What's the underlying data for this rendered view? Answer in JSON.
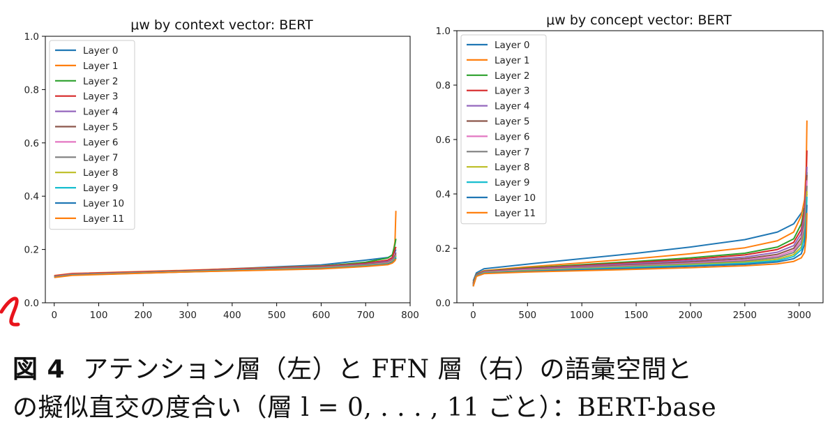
{
  "chart_data": [
    {
      "type": "line",
      "title": "μw by context vector: BERT",
      "xlabel": "",
      "ylabel": "",
      "xlim": [
        -20,
        800
      ],
      "ylim": [
        0.0,
        1.0
      ],
      "xticks": [
        0,
        100,
        200,
        300,
        400,
        500,
        600,
        700,
        800
      ],
      "yticks": [
        0.0,
        0.2,
        0.4,
        0.6,
        0.8,
        1.0
      ],
      "legend_position": "upper-left",
      "series": [
        {
          "name": "Layer 0",
          "color": "#1f77b4",
          "x": [
            0,
            40,
            300,
            600,
            700,
            750,
            760,
            766,
            768
          ],
          "y": [
            0.1,
            0.108,
            0.121,
            0.142,
            0.16,
            0.17,
            0.178,
            0.192,
            0.2
          ]
        },
        {
          "name": "Layer 1",
          "color": "#ff7f0e",
          "x": [
            0,
            40,
            300,
            600,
            700,
            750,
            760,
            766,
            768
          ],
          "y": [
            0.102,
            0.11,
            0.122,
            0.138,
            0.15,
            0.158,
            0.165,
            0.23,
            0.345
          ]
        },
        {
          "name": "Layer 2",
          "color": "#2ca02c",
          "x": [
            0,
            40,
            300,
            600,
            700,
            750,
            760,
            766,
            768
          ],
          "y": [
            0.1,
            0.108,
            0.12,
            0.137,
            0.152,
            0.168,
            0.18,
            0.22,
            0.24
          ]
        },
        {
          "name": "Layer 3",
          "color": "#d62728",
          "x": [
            0,
            40,
            300,
            600,
            700,
            750,
            760,
            766,
            768
          ],
          "y": [
            0.101,
            0.109,
            0.121,
            0.136,
            0.148,
            0.16,
            0.17,
            0.2,
            0.21
          ]
        },
        {
          "name": "Layer 4",
          "color": "#9467bd",
          "x": [
            0,
            40,
            300,
            600,
            700,
            750,
            760,
            766,
            768
          ],
          "y": [
            0.099,
            0.107,
            0.119,
            0.134,
            0.145,
            0.155,
            0.163,
            0.18,
            0.19
          ]
        },
        {
          "name": "Layer 5",
          "color": "#8c564b",
          "x": [
            0,
            40,
            300,
            600,
            700,
            750,
            760,
            766,
            768
          ],
          "y": [
            0.098,
            0.106,
            0.119,
            0.133,
            0.143,
            0.152,
            0.16,
            0.175,
            0.185
          ]
        },
        {
          "name": "Layer 6",
          "color": "#e377c2",
          "x": [
            0,
            40,
            300,
            600,
            700,
            750,
            760,
            766,
            768
          ],
          "y": [
            0.098,
            0.106,
            0.118,
            0.132,
            0.141,
            0.15,
            0.158,
            0.17,
            0.18
          ]
        },
        {
          "name": "Layer 7",
          "color": "#7f7f7f",
          "x": [
            0,
            40,
            300,
            600,
            700,
            750,
            760,
            766,
            768
          ],
          "y": [
            0.097,
            0.105,
            0.118,
            0.131,
            0.14,
            0.148,
            0.156,
            0.168,
            0.178
          ]
        },
        {
          "name": "Layer 8",
          "color": "#bcbd22",
          "x": [
            0,
            40,
            300,
            600,
            700,
            750,
            760,
            766,
            768
          ],
          "y": [
            0.097,
            0.105,
            0.117,
            0.13,
            0.139,
            0.147,
            0.154,
            0.165,
            0.175
          ]
        },
        {
          "name": "Layer 9",
          "color": "#17becf",
          "x": [
            0,
            40,
            300,
            600,
            700,
            750,
            760,
            766,
            768
          ],
          "y": [
            0.096,
            0.104,
            0.117,
            0.129,
            0.138,
            0.146,
            0.152,
            0.162,
            0.172
          ]
        },
        {
          "name": "Layer 10",
          "color": "#1f77b4",
          "x": [
            0,
            40,
            300,
            600,
            700,
            750,
            760,
            766,
            768
          ],
          "y": [
            0.096,
            0.104,
            0.116,
            0.128,
            0.137,
            0.145,
            0.151,
            0.16,
            0.168
          ]
        },
        {
          "name": "Layer 11",
          "color": "#ff7f0e",
          "x": [
            0,
            40,
            300,
            600,
            700,
            750,
            760,
            766,
            768
          ],
          "y": [
            0.095,
            0.103,
            0.116,
            0.127,
            0.136,
            0.143,
            0.149,
            0.158,
            0.165
          ]
        }
      ]
    },
    {
      "type": "line",
      "title": "μw by concept vector: BERT",
      "xlabel": "",
      "ylabel": "",
      "xlim": [
        -150,
        3220
      ],
      "ylim": [
        0.0,
        1.0
      ],
      "xticks": [
        0,
        500,
        1000,
        1500,
        2000,
        2500,
        3000
      ],
      "yticks": [
        0.0,
        0.2,
        0.4,
        0.6,
        0.8,
        1.0
      ],
      "legend_position": "upper-left",
      "series": [
        {
          "name": "Layer 0",
          "color": "#1f77b4",
          "x": [
            0,
            30,
            100,
            500,
            1000,
            1500,
            2000,
            2500,
            2800,
            2950,
            3020,
            3050,
            3065,
            3072
          ],
          "y": [
            0.08,
            0.11,
            0.125,
            0.142,
            0.162,
            0.182,
            0.205,
            0.232,
            0.26,
            0.29,
            0.33,
            0.35,
            0.38,
            0.4
          ]
        },
        {
          "name": "Layer 1",
          "color": "#ff7f0e",
          "x": [
            0,
            30,
            100,
            500,
            1000,
            1500,
            2000,
            2500,
            2800,
            2950,
            3020,
            3050,
            3065,
            3072
          ],
          "y": [
            0.075,
            0.105,
            0.118,
            0.132,
            0.147,
            0.162,
            0.18,
            0.202,
            0.228,
            0.26,
            0.32,
            0.38,
            0.5,
            0.67
          ]
        },
        {
          "name": "Layer 2",
          "color": "#2ca02c",
          "x": [
            0,
            30,
            100,
            500,
            1000,
            1500,
            2000,
            2500,
            2800,
            2950,
            3020,
            3050,
            3065,
            3072
          ],
          "y": [
            0.072,
            0.104,
            0.116,
            0.128,
            0.14,
            0.152,
            0.165,
            0.182,
            0.205,
            0.235,
            0.29,
            0.35,
            0.43,
            0.48
          ]
        },
        {
          "name": "Layer 3",
          "color": "#d62728",
          "x": [
            0,
            30,
            100,
            500,
            1000,
            1500,
            2000,
            2500,
            2800,
            2950,
            3020,
            3050,
            3065,
            3072
          ],
          "y": [
            0.07,
            0.103,
            0.115,
            0.126,
            0.137,
            0.148,
            0.16,
            0.176,
            0.196,
            0.222,
            0.27,
            0.34,
            0.46,
            0.56
          ]
        },
        {
          "name": "Layer 4",
          "color": "#9467bd",
          "x": [
            0,
            30,
            100,
            500,
            1000,
            1500,
            2000,
            2500,
            2800,
            2950,
            3020,
            3050,
            3065,
            3072
          ],
          "y": [
            0.068,
            0.102,
            0.114,
            0.124,
            0.134,
            0.144,
            0.155,
            0.168,
            0.186,
            0.21,
            0.255,
            0.32,
            0.42,
            0.5
          ]
        },
        {
          "name": "Layer 5",
          "color": "#8c564b",
          "x": [
            0,
            30,
            100,
            500,
            1000,
            1500,
            2000,
            2500,
            2800,
            2950,
            3020,
            3050,
            3065,
            3072
          ],
          "y": [
            0.066,
            0.101,
            0.113,
            0.122,
            0.131,
            0.14,
            0.15,
            0.162,
            0.178,
            0.2,
            0.24,
            0.3,
            0.4,
            0.47
          ]
        },
        {
          "name": "Layer 6",
          "color": "#e377c2",
          "x": [
            0,
            30,
            100,
            500,
            1000,
            1500,
            2000,
            2500,
            2800,
            2950,
            3020,
            3050,
            3065,
            3072
          ],
          "y": [
            0.064,
            0.1,
            0.112,
            0.121,
            0.129,
            0.137,
            0.146,
            0.157,
            0.171,
            0.192,
            0.228,
            0.285,
            0.38,
            0.45
          ]
        },
        {
          "name": "Layer 7",
          "color": "#7f7f7f",
          "x": [
            0,
            30,
            100,
            500,
            1000,
            1500,
            2000,
            2500,
            2800,
            2950,
            3020,
            3050,
            3065,
            3072
          ],
          "y": [
            0.063,
            0.1,
            0.111,
            0.119,
            0.127,
            0.135,
            0.143,
            0.153,
            0.166,
            0.185,
            0.218,
            0.27,
            0.36,
            0.43
          ]
        },
        {
          "name": "Layer 8",
          "color": "#bcbd22",
          "x": [
            0,
            30,
            100,
            500,
            1000,
            1500,
            2000,
            2500,
            2800,
            2950,
            3020,
            3050,
            3065,
            3072
          ],
          "y": [
            0.062,
            0.099,
            0.11,
            0.118,
            0.125,
            0.132,
            0.14,
            0.149,
            0.16,
            0.177,
            0.205,
            0.255,
            0.34,
            0.41
          ]
        },
        {
          "name": "Layer 9",
          "color": "#17becf",
          "x": [
            0,
            30,
            100,
            500,
            1000,
            1500,
            2000,
            2500,
            2800,
            2950,
            3020,
            3050,
            3065,
            3072
          ],
          "y": [
            0.061,
            0.099,
            0.109,
            0.116,
            0.123,
            0.13,
            0.137,
            0.145,
            0.155,
            0.17,
            0.195,
            0.24,
            0.32,
            0.39
          ]
        },
        {
          "name": "Layer 10",
          "color": "#1f77b4",
          "x": [
            0,
            30,
            100,
            500,
            1000,
            1500,
            2000,
            2500,
            2800,
            2950,
            3020,
            3050,
            3065,
            3072
          ],
          "y": [
            0.06,
            0.098,
            0.108,
            0.115,
            0.121,
            0.127,
            0.134,
            0.141,
            0.15,
            0.162,
            0.18,
            0.215,
            0.29,
            0.36
          ]
        },
        {
          "name": "Layer 11",
          "color": "#ff7f0e",
          "x": [
            0,
            30,
            100,
            500,
            1000,
            1500,
            2000,
            2500,
            2800,
            2950,
            3020,
            3050,
            3065,
            3072
          ],
          "y": [
            0.06,
            0.097,
            0.107,
            0.113,
            0.118,
            0.123,
            0.129,
            0.136,
            0.143,
            0.152,
            0.165,
            0.185,
            0.24,
            0.33
          ]
        }
      ]
    }
  ],
  "caption": {
    "figure_label": "図 4",
    "line1": "アテンション層（左）と FFN 層（右）の語彙空間と",
    "line2": "の擬似直交の度合い（層 l = 0, . . . , 11 ごと）：BERT-base"
  },
  "annotation_color": "#e8141c"
}
